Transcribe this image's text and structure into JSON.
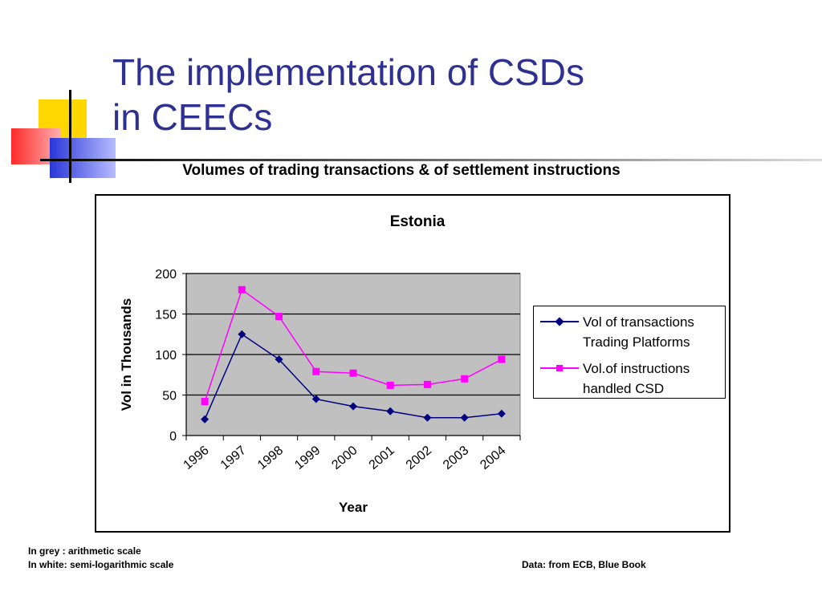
{
  "slide": {
    "title_line1": "The implementation of CSDs",
    "title_line2": "in CEECs",
    "subtitle": "Volumes of trading transactions & of settlement instructions",
    "note_line1": "In grey : arithmetic scale",
    "note_line2": "In white: semi-logarithmic scale",
    "source": "Data: from ECB, Blue Book"
  },
  "colors": {
    "title": "#2e3192",
    "plot_bg": "#c0c0c0",
    "series1": "#000080",
    "series2": "#ff00ff",
    "deco_yellow": "#ffd700",
    "deco_red": "#ff2a2a",
    "deco_blue": "#2a36d8"
  },
  "chart_data": {
    "type": "line",
    "title": "Estonia",
    "xlabel": "Year",
    "ylabel": "Vol in Thousands",
    "categories": [
      "1996",
      "1997",
      "1998",
      "1999",
      "2000",
      "2001",
      "2002",
      "2003",
      "2004"
    ],
    "ylim": [
      0,
      200
    ],
    "yticks": [
      "0",
      "50",
      "100",
      "150",
      "200"
    ],
    "grid": true,
    "legend_position": "right",
    "series": [
      {
        "name_line1": "Vol of transactions",
        "name_line2": "Trading Platforms",
        "marker": "diamond",
        "values": [
          20,
          125,
          94,
          45,
          36,
          30,
          22,
          22,
          27
        ]
      },
      {
        "name_line1": "Vol.of instructions",
        "name_line2": "handled CSD",
        "marker": "square",
        "values": [
          42,
          180,
          147,
          79,
          77,
          62,
          63,
          70,
          94
        ]
      }
    ]
  }
}
